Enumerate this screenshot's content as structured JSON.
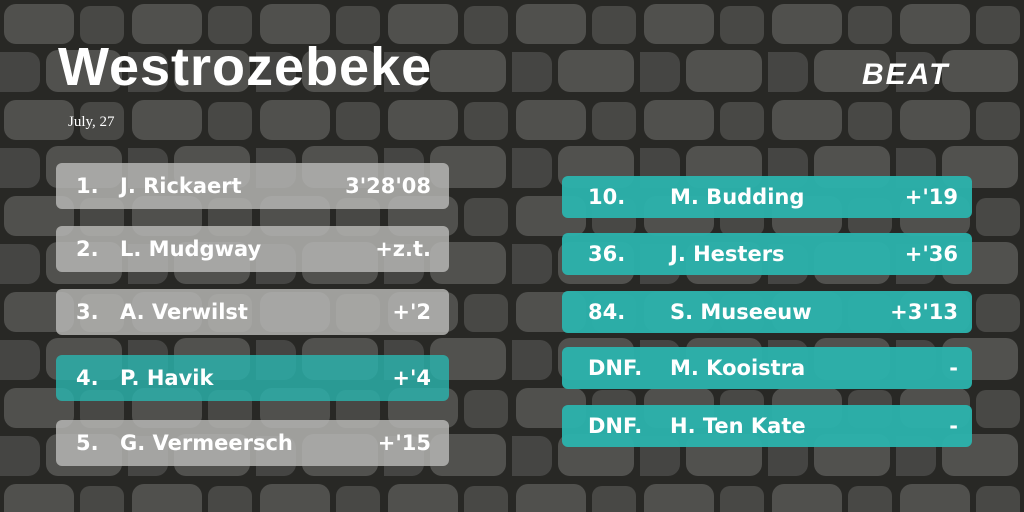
{
  "header": {
    "title": "Westrozebeke",
    "date": "July, 27",
    "logo": "BEAT"
  },
  "left_results": [
    {
      "position": "1.",
      "name": "J. Rickaert",
      "time": "3'28'08",
      "color": "#b9b9b7"
    },
    {
      "position": "2.",
      "name": "L. Mudgway",
      "time": "+z.t.",
      "color": "#b9b9b7"
    },
    {
      "position": "3.",
      "name": "A. Verwilst",
      "time": "+'2",
      "color": "#b9b9b7"
    },
    {
      "position": "4.",
      "name": "P. Havik",
      "time": "+'4",
      "color": "#2bb3ad"
    },
    {
      "position": "5.",
      "name": "G. Vermeersch",
      "time": "+'15",
      "color": "#b9b9b7"
    }
  ],
  "right_results": [
    {
      "position": "10.",
      "name": "M. Budding",
      "time": "+'19",
      "color": "#2bb3ad"
    },
    {
      "position": "36.",
      "name": "J. Hesters",
      "time": "+'36",
      "color": "#2bb3ad"
    },
    {
      "position": "84.",
      "name": "S. Museeuw",
      "time": "+3'13",
      "color": "#2bb3ad"
    },
    {
      "position": "DNF.",
      "name": "M. Kooistra",
      "time": "-",
      "color": "#2bb3ad"
    },
    {
      "position": "DNF.",
      "name": "H. Ten Kate",
      "time": "-",
      "color": "#2bb3ad"
    }
  ]
}
